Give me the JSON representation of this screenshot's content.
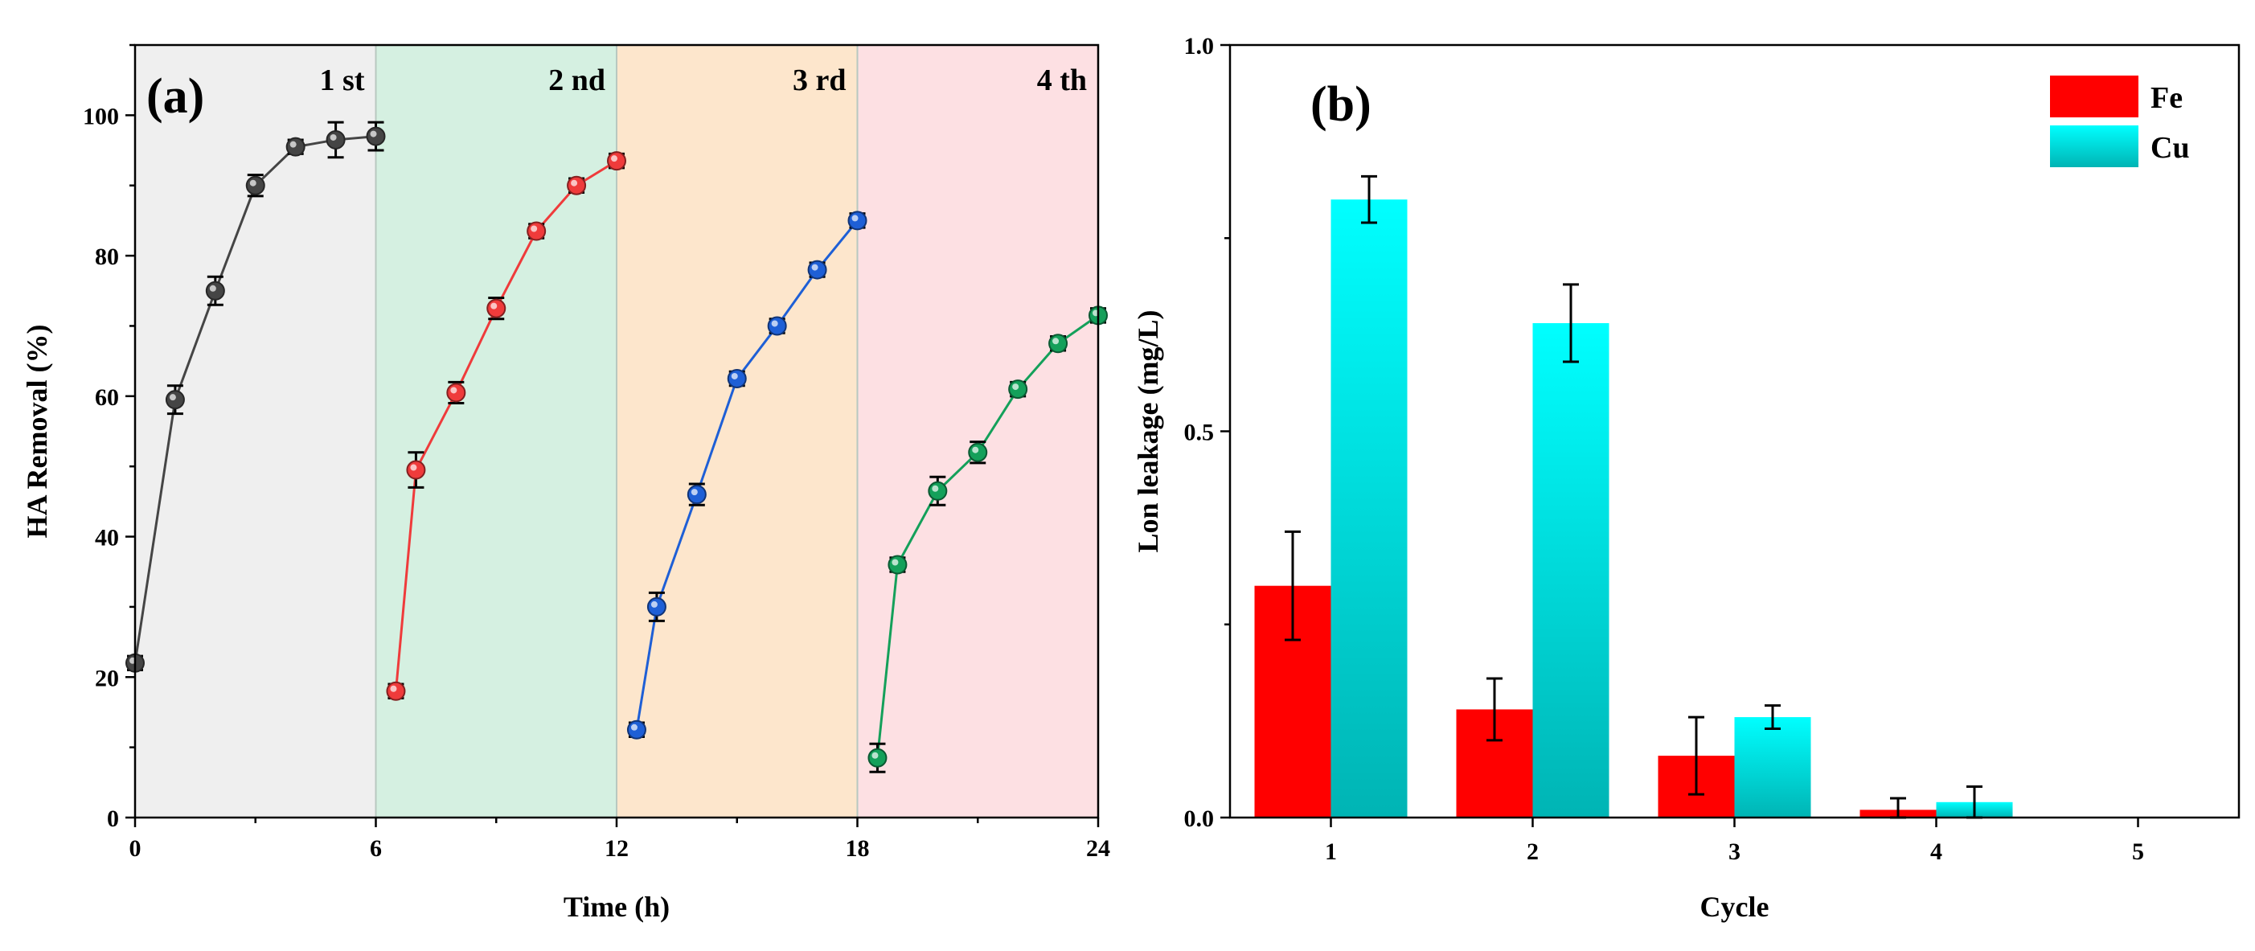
{
  "chart_data": [
    {
      "type": "line",
      "panel_label": "(a)",
      "xlabel": "Time (h)",
      "ylabel": "HA Removal (%)",
      "xlim": [
        0,
        24
      ],
      "ylim": [
        0,
        110
      ],
      "x_ticks": [
        0,
        6,
        12,
        18,
        24
      ],
      "y_ticks": [
        0,
        20,
        40,
        60,
        80,
        100
      ],
      "grid": false,
      "regions": [
        {
          "label": "1 st",
          "x_from": 0,
          "x_to": 6,
          "color": "#efefef"
        },
        {
          "label": "2 nd",
          "x_from": 6,
          "x_to": 12,
          "color": "#d5f0e1"
        },
        {
          "label": "3 rd",
          "x_from": 12,
          "x_to": 18,
          "color": "#fde6cc"
        },
        {
          "label": "4 th",
          "x_from": 18,
          "x_to": 24,
          "color": "#fde0e3"
        }
      ],
      "series": [
        {
          "color": "#454545",
          "x": [
            0,
            1,
            2,
            3,
            4,
            5,
            6
          ],
          "y": [
            22,
            59.5,
            75,
            90,
            95.5,
            96.5,
            97
          ],
          "err": [
            1,
            2,
            2,
            1.5,
            1,
            2.5,
            2
          ]
        },
        {
          "color": "#ef3b3b",
          "x": [
            6.5,
            7,
            8,
            9,
            10,
            11,
            12
          ],
          "y": [
            18,
            49.5,
            60.5,
            72.5,
            83.5,
            90,
            93.5
          ],
          "err": [
            1,
            2.5,
            1.5,
            1.5,
            1,
            1,
            1
          ]
        },
        {
          "color": "#1e5fd6",
          "x": [
            12.5,
            13,
            14,
            15,
            16,
            17,
            18
          ],
          "y": [
            12.5,
            30,
            46,
            62.5,
            70,
            78,
            85
          ],
          "err": [
            1,
            2,
            1.5,
            1,
            1,
            1,
            1
          ]
        },
        {
          "color": "#14a05a",
          "x": [
            18.5,
            19,
            20,
            21,
            22,
            23,
            24
          ],
          "y": [
            8.5,
            36,
            46.5,
            52,
            61,
            67.5,
            71.5
          ],
          "err": [
            2,
            1,
            2,
            1.5,
            1,
            1,
            1
          ]
        }
      ]
    },
    {
      "type": "bar",
      "panel_label": "(b)",
      "xlabel": "Cycle",
      "ylabel": "Lon leakage (mg/L)",
      "categories": [
        "1",
        "2",
        "3",
        "4",
        "5"
      ],
      "ylim": [
        0,
        1.0
      ],
      "y_ticks": [
        "0.0",
        "0.5",
        "1.0"
      ],
      "y_tick_values": [
        0,
        0.5,
        1.0
      ],
      "legend_position": "top-right",
      "grid": false,
      "series": [
        {
          "name": "Fe",
          "color": "#ff0000",
          "values": [
            0.3,
            0.14,
            0.08,
            0.01,
            0
          ],
          "err": [
            0.07,
            0.04,
            0.05,
            0.015,
            0
          ]
        },
        {
          "name": "Cu",
          "color": "#00e5e5",
          "values": [
            0.8,
            0.64,
            0.13,
            0.02,
            0
          ],
          "err": [
            0.03,
            0.05,
            0.015,
            0.02,
            0
          ]
        }
      ]
    }
  ]
}
